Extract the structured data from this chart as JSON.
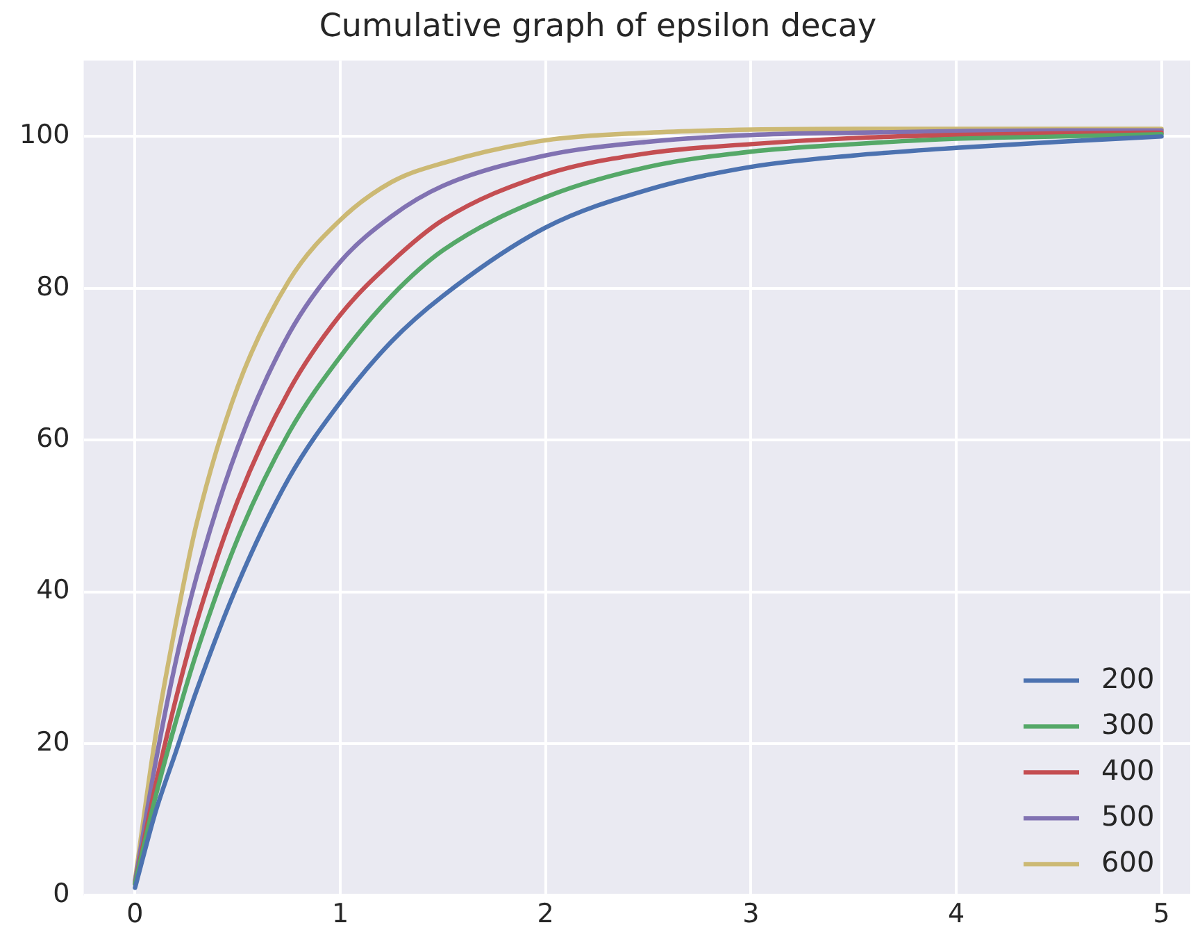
{
  "chart_data": {
    "type": "line",
    "title": "Cumulative graph of epsilon decay",
    "x": [
      0,
      0.1,
      0.2,
      0.3,
      0.5,
      0.75,
      1,
      1.25,
      1.5,
      2,
      2.5,
      3,
      3.5,
      4,
      4.5,
      5
    ],
    "series": [
      {
        "name": "200",
        "color": "#4c72b0",
        "values": [
          1,
          11,
          19,
          27,
          41,
          55,
          65,
          73,
          79,
          88,
          93,
          96,
          97.5,
          98.5,
          99.3,
          100
        ]
      },
      {
        "name": "300",
        "color": "#55a868",
        "values": [
          1.5,
          13,
          23,
          32,
          47,
          61,
          71,
          79,
          85,
          92,
          96,
          98,
          99,
          99.7,
          100,
          100.3
        ]
      },
      {
        "name": "400",
        "color": "#c44e52",
        "values": [
          1.5,
          14.5,
          26,
          36,
          52,
          66.5,
          76.5,
          83.5,
          89,
          95,
          97.8,
          99,
          99.8,
          100.2,
          100.4,
          100.5
        ]
      },
      {
        "name": "500",
        "color": "#8172b2",
        "values": [
          1.8,
          17.5,
          31,
          42,
          59,
          74,
          83.5,
          89.5,
          93.5,
          97.5,
          99.3,
          100.2,
          100.5,
          100.7,
          100.8,
          100.8
        ]
      },
      {
        "name": "600",
        "color": "#ccb974",
        "values": [
          2,
          21,
          36,
          49,
          67,
          81,
          89,
          94,
          96.5,
          99.5,
          100.5,
          100.9,
          101,
          101,
          101,
          101
        ]
      }
    ],
    "xlim": [
      -0.25,
      5.14
    ],
    "ylim": [
      0,
      110
    ],
    "xticks": [
      0,
      1,
      2,
      3,
      4,
      5
    ],
    "yticks": [
      0,
      20,
      40,
      60,
      80,
      100
    ],
    "grid": true,
    "legend": "bottom right",
    "marker": "none",
    "line_style": "solid"
  }
}
